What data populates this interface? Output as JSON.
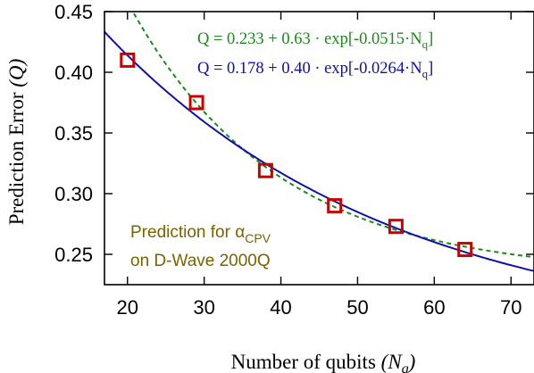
{
  "chart_data": {
    "type": "scatter",
    "title": "",
    "xlabel": "Number of qubits",
    "xlabel_symbol": "N",
    "xlabel_symbol_sub": "q",
    "ylabel": "Prediction Error",
    "ylabel_symbol": "Q",
    "xlim": [
      17,
      73
    ],
    "ylim": [
      0.225,
      0.45
    ],
    "x_ticks": [
      20,
      30,
      40,
      50,
      60,
      70
    ],
    "y_ticks": [
      0.25,
      0.3,
      0.35,
      0.4,
      0.45
    ],
    "x_tick_labels": [
      "20",
      "30",
      "40",
      "50",
      "60",
      "70"
    ],
    "y_tick_labels": [
      "0.25",
      "0.30",
      "0.35",
      "0.40",
      "0.45"
    ],
    "grid": false,
    "series": [
      {
        "kind": "points",
        "marker": "open-square",
        "color": "#cc0000",
        "x": [
          20,
          29,
          38,
          47,
          55,
          64
        ],
        "y": [
          0.41,
          0.375,
          0.319,
          0.29,
          0.273,
          0.254
        ]
      },
      {
        "kind": "fit",
        "style": "dashed",
        "color": "#1a8a1a",
        "params": [
          0.233,
          0.63,
          0.0515
        ],
        "label_text": "Q = 0.233 + 0.63 · exp[-0.0515·N",
        "label_sub": "q",
        "label_close": "]"
      },
      {
        "kind": "fit",
        "style": "solid",
        "color": "#1010a8",
        "params": [
          0.178,
          0.4,
          0.0264
        ],
        "label_text": "Q = 0.178 + 0.40 · exp[-0.0264·N",
        "label_sub": "q",
        "label_close": "]"
      }
    ],
    "annotation": {
      "line1_text": "Prediction for α",
      "line1_sub": "CPV",
      "line2_text": "on D-Wave 2000Q",
      "color": "#7a6200"
    }
  }
}
